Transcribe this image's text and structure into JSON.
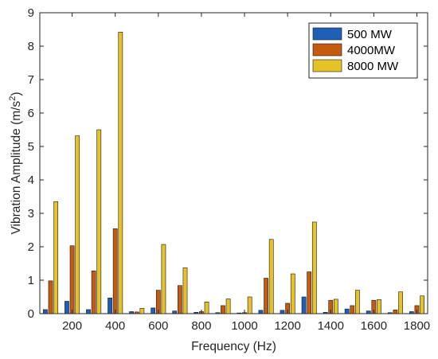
{
  "chart_data": {
    "type": "bar",
    "title": "",
    "xlabel": "Frequency (Hz)",
    "ylabel": "Vibration Amplitude (m/s",
    "ylabel_superscript": "2",
    "ylabel_close": ")",
    "categories": [
      100,
      200,
      300,
      400,
      500,
      600,
      700,
      800,
      900,
      1000,
      1100,
      1200,
      1300,
      1400,
      1500,
      1600,
      1700,
      1800
    ],
    "xlim": [
      50,
      1850
    ],
    "ylim": [
      0,
      9
    ],
    "x_ticks": [
      200,
      400,
      600,
      800,
      1000,
      1200,
      1400,
      1600,
      1800
    ],
    "y_ticks": [
      0,
      1,
      2,
      3,
      4,
      5,
      6,
      7,
      8,
      9
    ],
    "grid": false,
    "legend_position": "top-right",
    "series": [
      {
        "name": "500 MW",
        "color": "#1f5fb4",
        "values": [
          0.12,
          0.37,
          0.12,
          0.47,
          0.06,
          0.17,
          0.08,
          0.04,
          0.03,
          0.02,
          0.1,
          0.1,
          0.5,
          0.04,
          0.14,
          0.08,
          0.03,
          0.06
        ]
      },
      {
        "name": "4000MW",
        "color": "#c55a11",
        "values": [
          0.98,
          2.03,
          1.28,
          2.54,
          0.05,
          0.7,
          0.84,
          0.06,
          0.24,
          0.03,
          1.06,
          0.31,
          1.25,
          0.4,
          0.24,
          0.4,
          0.11,
          0.24
        ]
      },
      {
        "name": "8000 MW",
        "color": "#e6c229",
        "values": [
          3.35,
          5.32,
          5.5,
          8.42,
          0.16,
          2.07,
          1.37,
          0.35,
          0.44,
          0.5,
          2.22,
          1.19,
          2.74,
          0.43,
          0.7,
          0.42,
          0.65,
          0.53
        ]
      }
    ]
  }
}
